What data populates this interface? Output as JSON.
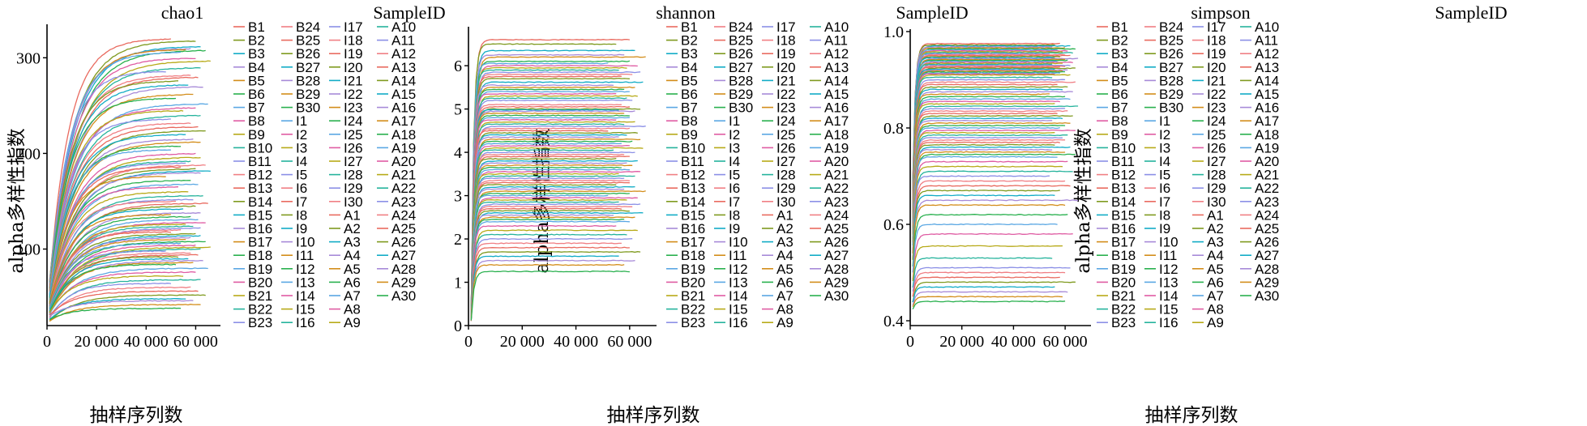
{
  "series_colors": [
    "#e96a5f",
    "#7f9a1f",
    "#12acc6",
    "#a78ad8",
    "#d38d1a",
    "#29b04e",
    "#5aa7e3",
    "#df5ca3",
    "#b7aa18",
    "#25b39c",
    "#8b8fe6",
    "#f07f84"
  ],
  "sample_ids": [
    "B1",
    "B2",
    "B3",
    "B4",
    "B5",
    "B6",
    "B7",
    "B8",
    "B9",
    "B10",
    "B11",
    "B12",
    "B13",
    "B14",
    "B15",
    "B16",
    "B17",
    "B18",
    "B19",
    "B20",
    "B21",
    "B22",
    "B23",
    "B24",
    "B25",
    "B26",
    "B27",
    "B28",
    "B29",
    "B30",
    "I1",
    "I2",
    "I3",
    "I4",
    "I5",
    "I6",
    "I7",
    "I8",
    "I9",
    "I10",
    "I11",
    "I12",
    "I13",
    "I14",
    "I15",
    "I16",
    "I17",
    "I18",
    "I19",
    "I20",
    "I21",
    "I22",
    "I23",
    "I24",
    "I25",
    "I26",
    "I27",
    "I28",
    "I29",
    "I30",
    "A1",
    "A2",
    "A3",
    "A4",
    "A5",
    "A6",
    "A7",
    "A8",
    "A9",
    "A10",
    "A11",
    "A12",
    "A13",
    "A14",
    "A15",
    "A16",
    "A17",
    "A18",
    "A19",
    "A20",
    "A21",
    "A22",
    "A23",
    "A24",
    "A25",
    "A26",
    "A27",
    "A28",
    "A29",
    "A30"
  ],
  "chart_data": [
    {
      "type": "line",
      "title": "chao1",
      "xlabel": "抽样序列数",
      "ylabel": "alpha多样性指数",
      "legend_title": "SampleID",
      "xlim": [
        0,
        70000
      ],
      "ylim": [
        20,
        335
      ],
      "xticks": [
        0,
        20000,
        40000,
        60000
      ],
      "xtick_labels": [
        "0",
        "20 000",
        "40 000",
        "60 000"
      ],
      "yticks": [
        100,
        200,
        300
      ],
      "ytick_labels": [
        "100",
        "200",
        "300"
      ],
      "plateaus": [
        320,
        318,
        312,
        310,
        309,
        308,
        306,
        300,
        297,
        290,
        286,
        282,
        280,
        276,
        272,
        270,
        262,
        258,
        252,
        248,
        245,
        240,
        236,
        232,
        228,
        224,
        220,
        215,
        212,
        208,
        204,
        200,
        196,
        192,
        190,
        188,
        186,
        184,
        182,
        180,
        176,
        172,
        168,
        165,
        160,
        156,
        152,
        150,
        148,
        145,
        142,
        138,
        136,
        134,
        131,
        128,
        126,
        124,
        122,
        120,
        118,
        116,
        114,
        112,
        110,
        108,
        106,
        104,
        102,
        100,
        98,
        96,
        94,
        92,
        90,
        88,
        86,
        84,
        80,
        76,
        72,
        68,
        64,
        60,
        56,
        52,
        48,
        46,
        42,
        38
      ],
      "x_end": [
        50000,
        60000,
        62000,
        58000,
        56000,
        64000,
        54000,
        60000,
        66000,
        62000,
        48000,
        58000,
        61000,
        53000,
        57000,
        63000,
        59000,
        52000,
        65000,
        60000,
        55000,
        62000,
        50000,
        58000,
        61000,
        64000,
        56000,
        59000,
        62000,
        54000
      ],
      "start_fraction": 0.14,
      "rise_k": 6.2
    },
    {
      "type": "line",
      "title": "shannon",
      "xlabel": "抽样序列数",
      "ylabel": "alpha多样性指数",
      "legend_title": "SampleID",
      "xlim": [
        0,
        70000
      ],
      "ylim": [
        0,
        6.9
      ],
      "xticks": [
        0,
        20000,
        40000,
        60000
      ],
      "xtick_labels": [
        "0",
        "20 000",
        "40 000",
        "60 000"
      ],
      "yticks": [
        0,
        1,
        2,
        3,
        4,
        5,
        6
      ],
      "ytick_labels": [
        "0",
        "1",
        "2",
        "3",
        "4",
        "5",
        "6"
      ],
      "plateaus": [
        6.6,
        6.5,
        6.35,
        6.25,
        6.2,
        6.1,
        6.05,
        6.0,
        5.95,
        5.9,
        5.85,
        5.8,
        5.75,
        5.7,
        5.62,
        5.55,
        5.5,
        5.45,
        5.4,
        5.35,
        5.3,
        5.25,
        5.2,
        5.1,
        5.05,
        5.0,
        4.98,
        4.95,
        4.9,
        4.85,
        4.8,
        4.75,
        4.7,
        4.65,
        4.6,
        4.55,
        4.5,
        4.45,
        4.4,
        4.35,
        4.3,
        4.25,
        4.2,
        4.15,
        4.1,
        4.05,
        4.0,
        3.95,
        3.9,
        3.85,
        3.8,
        3.75,
        3.7,
        3.65,
        3.6,
        3.55,
        3.5,
        3.45,
        3.4,
        3.35,
        3.3,
        3.25,
        3.2,
        3.15,
        3.1,
        3.05,
        3.0,
        2.95,
        2.9,
        2.85,
        2.8,
        2.75,
        2.7,
        2.65,
        2.6,
        2.55,
        2.5,
        2.45,
        2.4,
        2.3,
        2.2,
        2.1,
        2.0,
        1.9,
        1.8,
        1.7,
        1.6,
        1.5,
        1.4,
        1.25
      ],
      "x_end": [
        60000,
        55000,
        62000,
        58000,
        66000,
        60000,
        52000,
        63000,
        59000,
        56000,
        64000,
        61000,
        57000,
        60000,
        65000,
        54000,
        62000,
        58000,
        60000,
        55000,
        63000,
        59000,
        61000,
        57000,
        60000,
        64000,
        56000,
        62000,
        58000,
        60000
      ],
      "start_fraction": 0.04,
      "rise_k": 60
    },
    {
      "type": "line",
      "title": "simpson",
      "xlabel": "抽样序列数",
      "ylabel": "alpha多样性指数",
      "legend_title": "SampleID",
      "xlim": [
        0,
        70000
      ],
      "ylim": [
        0.39,
        1.005
      ],
      "xticks": [
        0,
        20000,
        40000,
        60000
      ],
      "xtick_labels": [
        "0",
        "20 000",
        "40 000",
        "60 000"
      ],
      "yticks": [
        0.4,
        0.6,
        0.8,
        1.0
      ],
      "ytick_labels": [
        "0.4",
        "0.6",
        "0.8",
        "1.0"
      ],
      "plateaus": [
        0.975,
        0.972,
        0.97,
        0.968,
        0.966,
        0.964,
        0.962,
        0.96,
        0.958,
        0.956,
        0.954,
        0.952,
        0.95,
        0.948,
        0.946,
        0.944,
        0.942,
        0.94,
        0.938,
        0.936,
        0.934,
        0.932,
        0.93,
        0.928,
        0.926,
        0.924,
        0.922,
        0.92,
        0.918,
        0.916,
        0.914,
        0.912,
        0.91,
        0.905,
        0.9,
        0.895,
        0.89,
        0.885,
        0.88,
        0.875,
        0.87,
        0.865,
        0.86,
        0.855,
        0.85,
        0.845,
        0.84,
        0.835,
        0.83,
        0.825,
        0.82,
        0.815,
        0.81,
        0.805,
        0.8,
        0.795,
        0.79,
        0.785,
        0.78,
        0.775,
        0.77,
        0.765,
        0.76,
        0.755,
        0.75,
        0.745,
        0.74,
        0.73,
        0.72,
        0.71,
        0.7,
        0.69,
        0.68,
        0.67,
        0.66,
        0.65,
        0.64,
        0.62,
        0.6,
        0.58,
        0.555,
        0.53,
        0.51,
        0.5,
        0.49,
        0.48,
        0.47,
        0.46,
        0.45,
        0.44
      ],
      "x_end": [
        58000,
        56000,
        62000,
        55000,
        60000,
        64000,
        57000,
        61000,
        59000,
        63000,
        54000,
        60000,
        62000,
        58000,
        56000,
        65000,
        60000,
        61000,
        57000,
        63000,
        59000,
        55000,
        62000,
        60000,
        58000,
        64000,
        56000,
        61000,
        59000,
        60000
      ],
      "start_fraction": 0.5,
      "rise_k": 60
    }
  ]
}
